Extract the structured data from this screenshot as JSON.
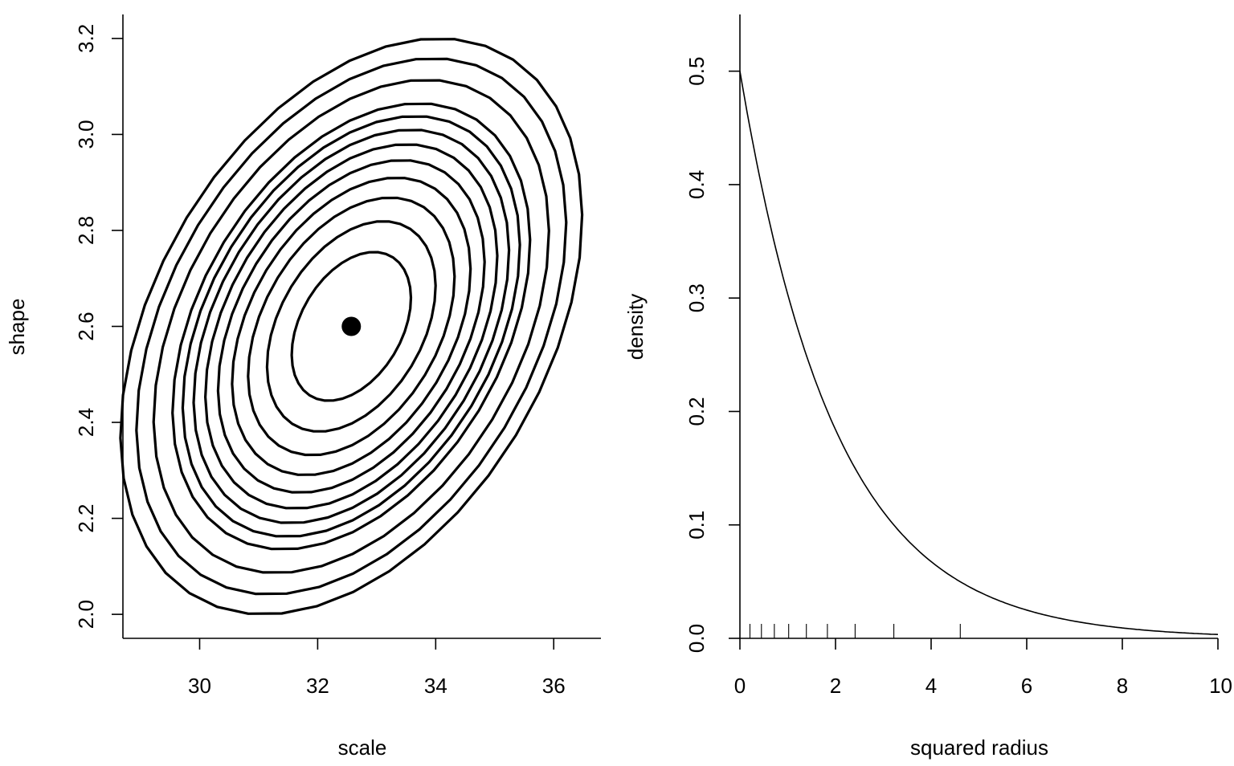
{
  "chart_data": [
    {
      "type": "contour",
      "xlabel": "scale",
      "ylabel": "shape",
      "xlim": [
        28.7,
        36.8
      ],
      "ylim": [
        1.95,
        3.25
      ],
      "xticks": [
        30,
        32,
        34,
        36
      ],
      "yticks": [
        "2.0",
        "2.2",
        "2.4",
        "2.6",
        "2.8",
        "3.0",
        "3.2"
      ],
      "center": {
        "x": 32.57,
        "y": 2.6
      },
      "ellipse": {
        "sx": 1.01,
        "sy": 0.155,
        "rho": 0.38
      },
      "contour_levels": [
        1,
        2,
        3,
        4,
        5,
        6,
        7,
        8,
        9,
        11,
        13,
        15
      ],
      "grid": false,
      "color": "#000000"
    },
    {
      "type": "line",
      "xlabel": "squared radius",
      "ylabel": "density",
      "xlim": [
        0,
        10
      ],
      "ylim": [
        0,
        0.55
      ],
      "xticks": [
        0,
        2,
        4,
        6,
        8,
        10
      ],
      "yticks": [
        "0.0",
        "0.1",
        "0.2",
        "0.3",
        "0.4",
        "0.5"
      ],
      "curve": {
        "function": "0.5*exp(-x/2)",
        "x_range": [
          0,
          10
        ]
      },
      "rug": [
        0.21,
        0.45,
        0.72,
        1.02,
        1.39,
        1.83,
        2.41,
        3.22,
        4.61
      ],
      "grid": false,
      "color": "#000000"
    }
  ]
}
